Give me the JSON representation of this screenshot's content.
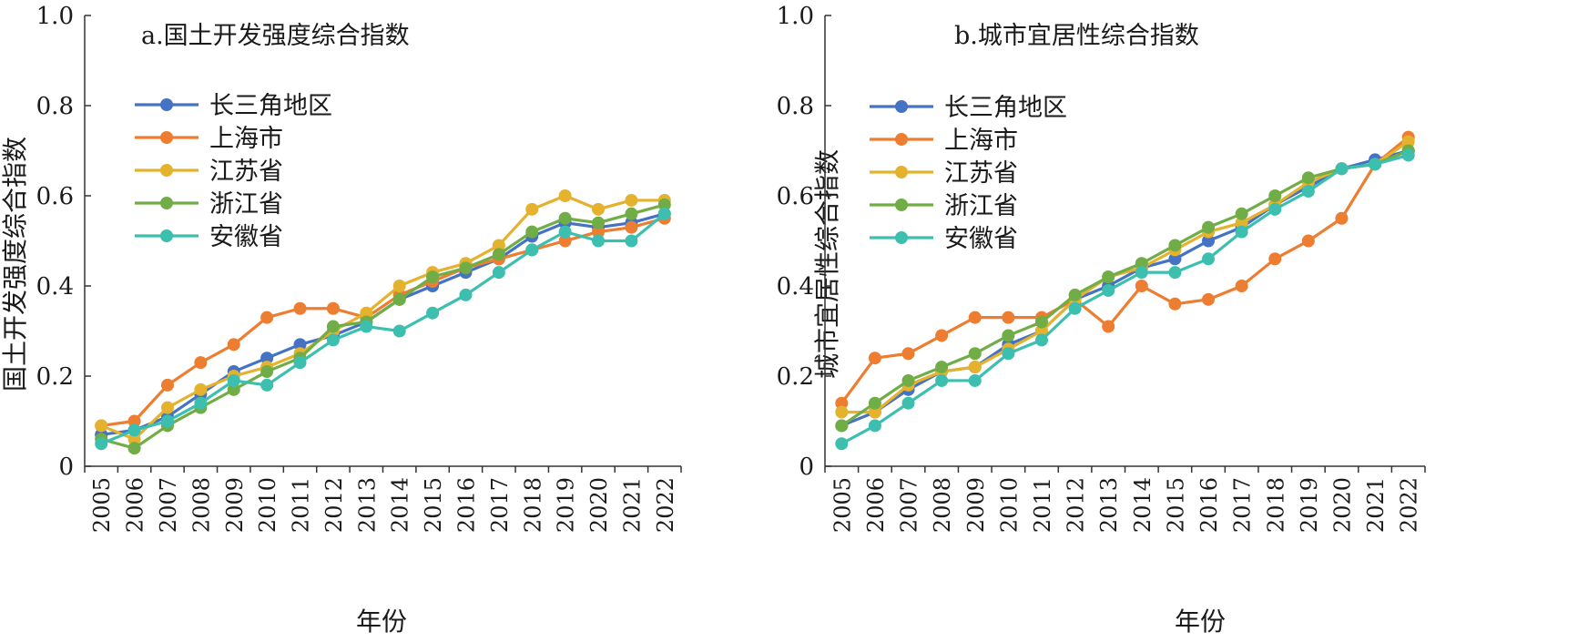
{
  "x_axis_label": "年份",
  "chart_data": [
    {
      "type": "line",
      "title": "a.国土开发强度综合指数",
      "xlabel": "年份",
      "ylabel": "国土开发强度综合指数",
      "ylim": [
        0,
        1.0
      ],
      "yticks": [
        "0",
        "0.2",
        "0.4",
        "0.6",
        "0.8",
        "1.0"
      ],
      "x": [
        "2005",
        "2006",
        "2007",
        "2008",
        "2009",
        "2010",
        "2011",
        "2012",
        "2013",
        "2014",
        "2015",
        "2016",
        "2017",
        "2018",
        "2019",
        "2020",
        "2021",
        "2022"
      ],
      "legend_position": "upper-left",
      "grid": false,
      "series": [
        {
          "name": "长三角地区",
          "color": "#4472c4",
          "values": [
            0.07,
            0.08,
            0.11,
            0.16,
            0.21,
            0.24,
            0.27,
            0.29,
            0.32,
            0.37,
            0.4,
            0.43,
            0.46,
            0.51,
            0.54,
            0.53,
            0.54,
            0.56
          ]
        },
        {
          "name": "上海市",
          "color": "#ed7d31",
          "values": [
            0.09,
            0.1,
            0.18,
            0.23,
            0.27,
            0.33,
            0.35,
            0.35,
            0.33,
            0.38,
            0.41,
            0.44,
            0.46,
            0.48,
            0.5,
            0.52,
            0.53,
            0.55
          ]
        },
        {
          "name": "江苏省",
          "color": "#e5b22e",
          "values": [
            0.09,
            0.06,
            0.13,
            0.17,
            0.2,
            0.22,
            0.25,
            0.3,
            0.34,
            0.4,
            0.43,
            0.45,
            0.49,
            0.57,
            0.6,
            0.57,
            0.59,
            0.59
          ]
        },
        {
          "name": "浙江省",
          "color": "#70ad47",
          "values": [
            0.06,
            0.04,
            0.09,
            0.13,
            0.17,
            0.21,
            0.24,
            0.31,
            0.32,
            0.37,
            0.42,
            0.44,
            0.47,
            0.52,
            0.55,
            0.54,
            0.56,
            0.58
          ]
        },
        {
          "name": "安徽省",
          "color": "#3dbfb0",
          "values": [
            0.05,
            0.08,
            0.1,
            0.14,
            0.19,
            0.18,
            0.23,
            0.28,
            0.31,
            0.3,
            0.34,
            0.38,
            0.43,
            0.48,
            0.52,
            0.5,
            0.5,
            0.56
          ]
        }
      ]
    },
    {
      "type": "line",
      "title": "b.城市宜居性综合指数",
      "xlabel": "年份",
      "ylabel": "城市宜居性综合指数",
      "ylim": [
        0,
        1.0
      ],
      "yticks": [
        "0",
        "0.2",
        "0.4",
        "0.6",
        "0.8",
        "1.0"
      ],
      "x": [
        "2005",
        "2006",
        "2007",
        "2008",
        "2009",
        "2010",
        "2011",
        "2012",
        "2013",
        "2014",
        "2015",
        "2016",
        "2017",
        "2018",
        "2019",
        "2020",
        "2021",
        "2022"
      ],
      "legend_position": "upper-left",
      "grid": false,
      "series": [
        {
          "name": "长三角地区",
          "color": "#4472c4",
          "values": [
            0.09,
            0.12,
            0.17,
            0.21,
            0.22,
            0.27,
            0.3,
            0.37,
            0.4,
            0.44,
            0.46,
            0.5,
            0.53,
            0.58,
            0.62,
            0.66,
            0.68,
            0.7
          ]
        },
        {
          "name": "上海市",
          "color": "#ed7d31",
          "values": [
            0.14,
            0.24,
            0.25,
            0.29,
            0.33,
            0.33,
            0.33,
            0.37,
            0.31,
            0.4,
            0.36,
            0.37,
            0.4,
            0.46,
            0.5,
            0.55,
            0.67,
            0.73
          ]
        },
        {
          "name": "江苏省",
          "color": "#e5b22e",
          "values": [
            0.12,
            0.12,
            0.18,
            0.21,
            0.22,
            0.26,
            0.3,
            0.37,
            0.42,
            0.44,
            0.48,
            0.52,
            0.54,
            0.58,
            0.63,
            0.66,
            0.67,
            0.72
          ]
        },
        {
          "name": "浙江省",
          "color": "#70ad47",
          "values": [
            0.09,
            0.14,
            0.19,
            0.22,
            0.25,
            0.29,
            0.32,
            0.38,
            0.42,
            0.45,
            0.49,
            0.53,
            0.56,
            0.6,
            0.64,
            0.66,
            0.67,
            0.7
          ]
        },
        {
          "name": "安徽省",
          "color": "#3dbfb0",
          "values": [
            0.05,
            0.09,
            0.14,
            0.19,
            0.19,
            0.25,
            0.28,
            0.35,
            0.39,
            0.43,
            0.43,
            0.46,
            0.52,
            0.57,
            0.61,
            0.66,
            0.67,
            0.69
          ]
        }
      ]
    }
  ]
}
